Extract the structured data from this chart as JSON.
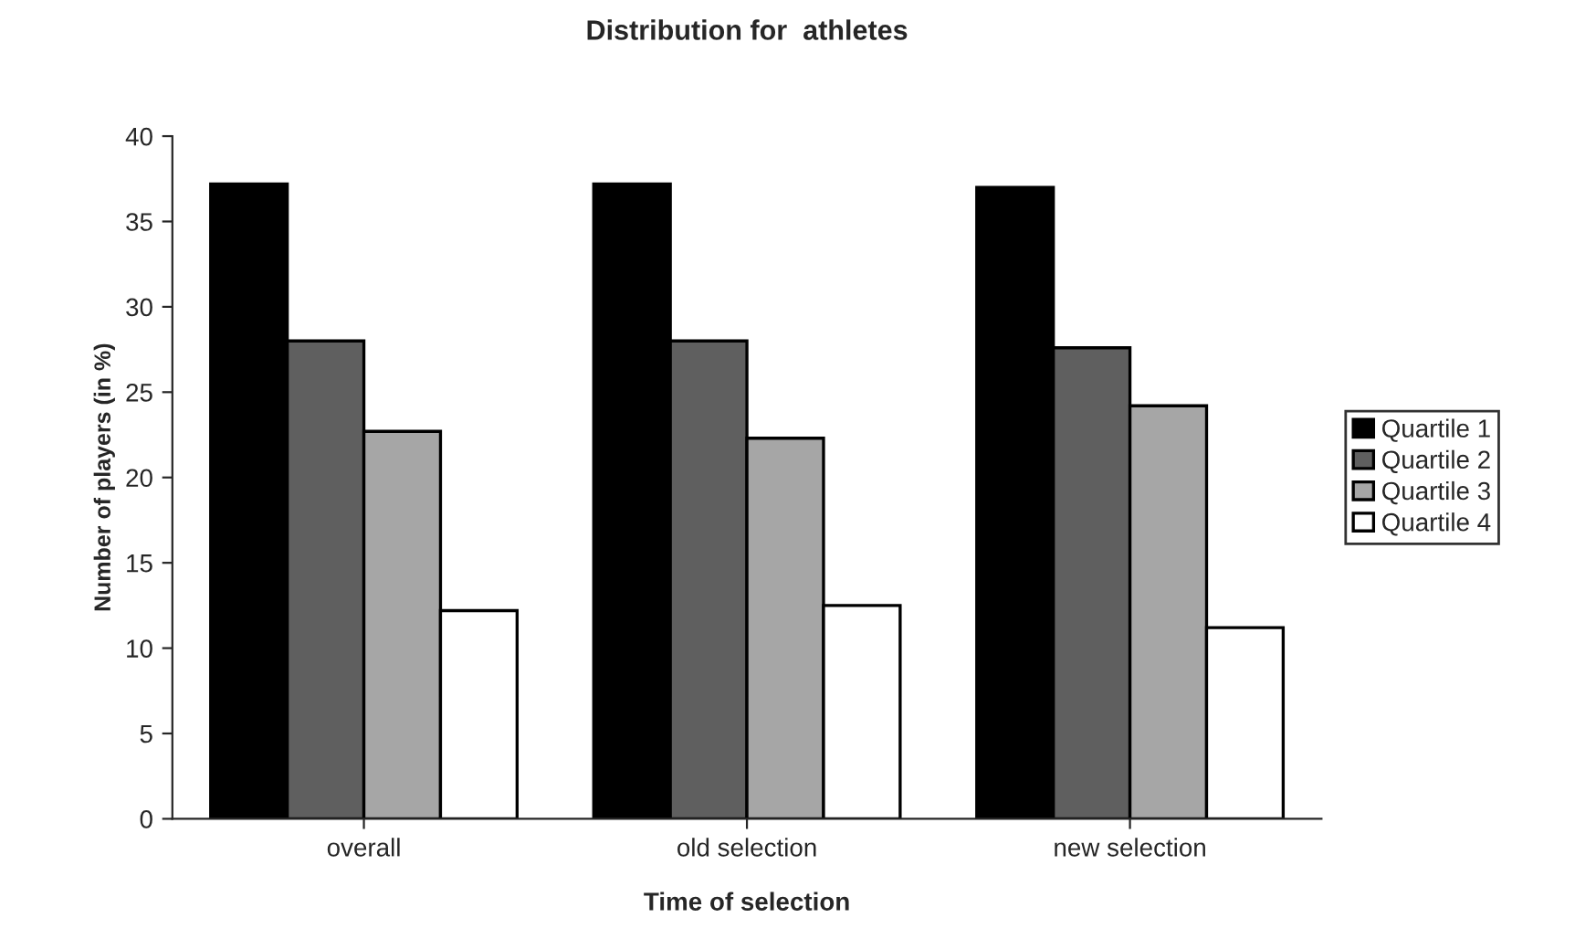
{
  "chart_data": {
    "type": "bar",
    "title": "Distribution for  athletes",
    "xlabel": "Time of selection",
    "ylabel": "Number of players (in %)",
    "categories": [
      "overall",
      "old selection",
      "new selection"
    ],
    "series": [
      {
        "name": "Quartile 1",
        "color": "#000000",
        "values": [
          37.2,
          37.2,
          37.0
        ]
      },
      {
        "name": "Quartile 2",
        "color": "#5f5f5f",
        "values": [
          28.0,
          28.0,
          27.6
        ]
      },
      {
        "name": "Quartile 3",
        "color": "#a6a6a6",
        "values": [
          22.7,
          22.3,
          24.2
        ]
      },
      {
        "name": "Quartile 4",
        "color": "#ffffff",
        "values": [
          12.2,
          12.5,
          11.2
        ]
      }
    ],
    "ylim": [
      0,
      40
    ],
    "yticks": [
      0,
      5,
      10,
      15,
      20,
      25,
      30,
      35,
      40
    ],
    "grid": false,
    "legend": "right"
  }
}
